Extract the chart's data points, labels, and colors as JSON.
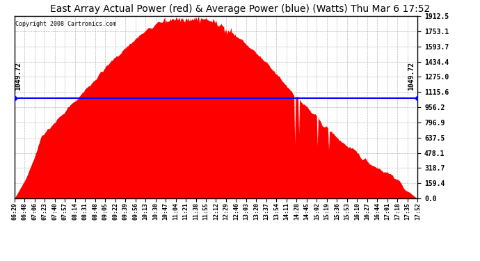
{
  "title": "East Array Actual Power (red) & Average Power (blue) (Watts) Thu Mar 6 17:52",
  "copyright": "Copyright 2008 Cartronics.com",
  "average_power": 1049.72,
  "y_max": 1912.5,
  "y_min": 0.0,
  "y_ticks": [
    0.0,
    159.4,
    318.7,
    478.1,
    637.5,
    796.9,
    956.2,
    1115.6,
    1275.0,
    1434.4,
    1593.7,
    1753.1,
    1912.5
  ],
  "fill_color": "red",
  "avg_line_color": "blue",
  "title_fontsize": 10,
  "x_labels": [
    "06:29",
    "06:48",
    "07:06",
    "07:23",
    "07:40",
    "07:57",
    "08:14",
    "08:31",
    "08:48",
    "09:05",
    "09:22",
    "09:39",
    "09:56",
    "10:13",
    "10:30",
    "10:47",
    "11:04",
    "11:21",
    "11:38",
    "11:55",
    "12:12",
    "12:29",
    "12:46",
    "13:03",
    "13:20",
    "13:37",
    "13:54",
    "14:11",
    "14:28",
    "14:45",
    "15:02",
    "15:19",
    "15:36",
    "15:53",
    "16:10",
    "16:27",
    "16:44",
    "17:01",
    "17:18",
    "17:35",
    "17:52"
  ],
  "num_points": 500,
  "peak_value": 1912.5,
  "avg_label": "1049.72"
}
